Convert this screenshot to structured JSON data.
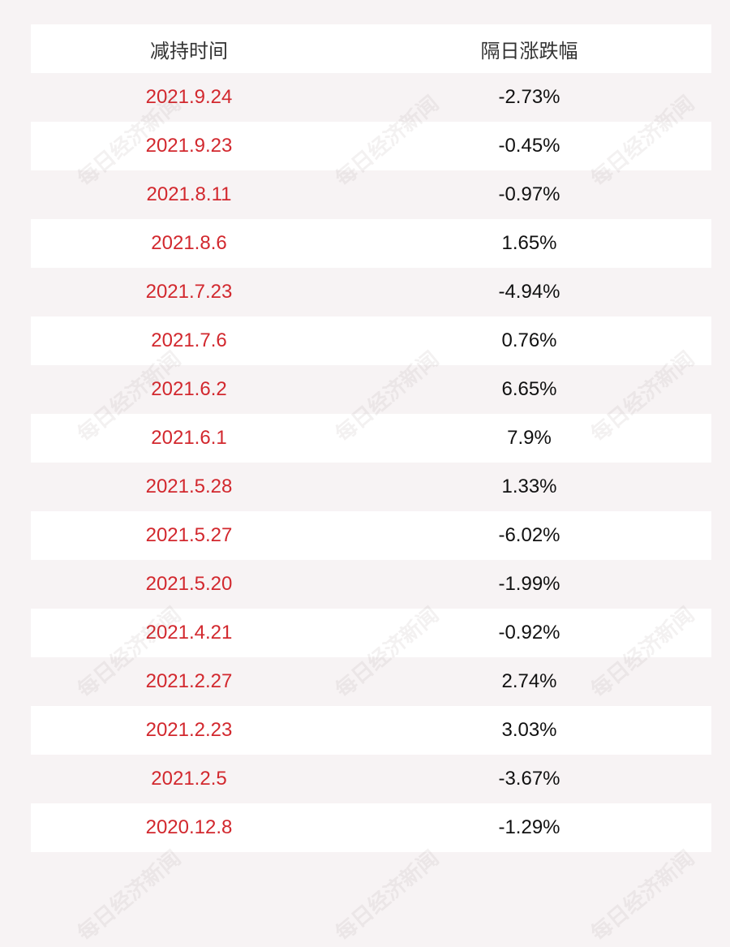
{
  "table": {
    "header": [
      "减持时间",
      "隔日涨跌幅"
    ],
    "rows": [
      [
        "2021.9.24",
        "-2.73%"
      ],
      [
        "2021.9.23",
        "-0.45%"
      ],
      [
        "2021.8.11",
        "-0.97%"
      ],
      [
        "2021.8.6",
        "1.65%"
      ],
      [
        "2021.7.23",
        "-4.94%"
      ],
      [
        "2021.7.6",
        "0.76%"
      ],
      [
        "2021.6.2",
        "6.65%"
      ],
      [
        "2021.6.1",
        "7.9%"
      ],
      [
        "2021.5.28",
        "1.33%"
      ],
      [
        "2021.5.27",
        "-6.02%"
      ],
      [
        "2021.5.20",
        "-1.99%"
      ],
      [
        "2021.4.21",
        "-0.92%"
      ],
      [
        "2021.2.27",
        "2.74%"
      ],
      [
        "2021.2.23",
        "3.03%"
      ],
      [
        "2021.2.5",
        "-3.67%"
      ],
      [
        "2020.12.8",
        "-1.29%"
      ]
    ]
  },
  "watermark": "每日经济新闻"
}
